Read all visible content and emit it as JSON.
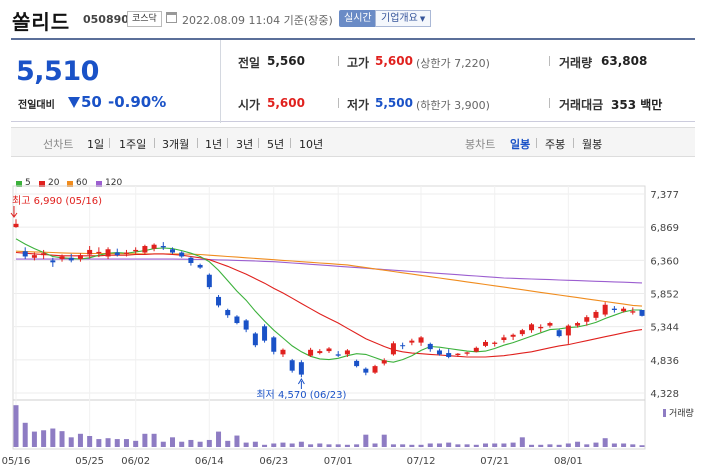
{
  "header": {
    "stock_name": "쏠리드",
    "stock_code": "050890",
    "market": "코스닥",
    "timestamp": "2022.08.09 11:04 기준(장중)",
    "realtime_label": "실시간",
    "overview_label": "기업개요"
  },
  "quote": {
    "price": "5,510",
    "change_label": "전일대비",
    "change": "50",
    "change_pct": "-0.90%",
    "prev_close_label": "전일",
    "prev_close": "5,560",
    "open_label": "시가",
    "open": "5,600",
    "high_label": "고가",
    "high": "5,600",
    "upper_limit": "(상한가 7,220)",
    "low_label": "저가",
    "low": "5,500",
    "lower_limit": "(하한가 3,900)",
    "volume_label": "거래량",
    "volume": "63,808",
    "amount_label": "거래대금",
    "amount": "353 백만"
  },
  "periods": {
    "line_chart_label": "선차트",
    "line_items": [
      "1일",
      "1주일",
      "3개월",
      "1년",
      "3년",
      "5년",
      "10년"
    ],
    "candle_chart_label": "봉차트",
    "candle_items": [
      "일봉",
      "주봉",
      "월봉"
    ],
    "active_candle": "일봉"
  },
  "colors": {
    "up": "#e0211e",
    "down": "#1a52c7",
    "ma5": "#3bb13b",
    "ma20": "#e0211e",
    "ma60": "#f08c1e",
    "ma120": "#9c5fd0",
    "volume": "#8e7cc3",
    "accent": "#5b6f99"
  },
  "chart_data": {
    "type": "candlestick",
    "legend": [
      "5",
      "20",
      "60",
      "120"
    ],
    "y_ticks": [
      "7,377",
      "6,869",
      "6,360",
      "5,852",
      "5,344",
      "4,836",
      "4,328"
    ],
    "ylim": [
      4328,
      7377
    ],
    "x_labels": [
      "05/16",
      "05/25",
      "06/02",
      "06/14",
      "06/23",
      "07/01",
      "07/12",
      "07/21",
      "08/01"
    ],
    "annotations": {
      "high": "최고 6,990 (05/16)",
      "low": "최저 4,570 (06/23)"
    },
    "volume_label": "거래량",
    "candles": [
      [
        6870,
        6990,
        6860,
        6920
      ],
      [
        6500,
        6560,
        6380,
        6420
      ],
      [
        6400,
        6480,
        6360,
        6440
      ],
      [
        6440,
        6520,
        6380,
        6470
      ],
      [
        6360,
        6400,
        6260,
        6330
      ],
      [
        6380,
        6450,
        6340,
        6420
      ],
      [
        6400,
        6460,
        6330,
        6360
      ],
      [
        6380,
        6470,
        6340,
        6440
      ],
      [
        6450,
        6580,
        6390,
        6520
      ],
      [
        6470,
        6560,
        6410,
        6490
      ],
      [
        6420,
        6560,
        6380,
        6530
      ],
      [
        6480,
        6540,
        6420,
        6440
      ],
      [
        6460,
        6520,
        6420,
        6480
      ],
      [
        6500,
        6560,
        6460,
        6520
      ],
      [
        6480,
        6600,
        6450,
        6580
      ],
      [
        6540,
        6620,
        6500,
        6600
      ],
      [
        6580,
        6640,
        6520,
        6560
      ],
      [
        6530,
        6560,
        6460,
        6480
      ],
      [
        6480,
        6500,
        6400,
        6420
      ],
      [
        6400,
        6420,
        6280,
        6320
      ],
      [
        6290,
        6310,
        6230,
        6250
      ],
      [
        6140,
        6160,
        5920,
        5950
      ],
      [
        5800,
        5830,
        5640,
        5670
      ],
      [
        5600,
        5620,
        5480,
        5520
      ],
      [
        5500,
        5520,
        5380,
        5400
      ],
      [
        5440,
        5460,
        5260,
        5300
      ],
      [
        5240,
        5260,
        5030,
        5060
      ],
      [
        5350,
        5380,
        5100,
        5130
      ],
      [
        5180,
        5200,
        4920,
        4960
      ],
      [
        4920,
        5010,
        4880,
        4990
      ],
      [
        4830,
        4850,
        4640,
        4670
      ],
      [
        4800,
        4830,
        4570,
        4610
      ],
      [
        4900,
        5020,
        4880,
        4990
      ],
      [
        4940,
        5000,
        4920,
        4970
      ],
      [
        4970,
        5030,
        4940,
        5010
      ],
      [
        4920,
        4970,
        4880,
        4900
      ],
      [
        4920,
        5000,
        4880,
        4980
      ],
      [
        4820,
        4840,
        4720,
        4740
      ],
      [
        4700,
        4720,
        4600,
        4640
      ],
      [
        4640,
        4760,
        4620,
        4740
      ],
      [
        4780,
        4860,
        4750,
        4830
      ],
      [
        4920,
        5120,
        4900,
        5090
      ],
      [
        5060,
        5100,
        5000,
        5050
      ],
      [
        5100,
        5160,
        5060,
        5130
      ],
      [
        5100,
        5200,
        5050,
        5180
      ],
      [
        5080,
        5100,
        4960,
        5000
      ],
      [
        4980,
        5010,
        4900,
        4920
      ],
      [
        4940,
        5000,
        4860,
        4880
      ],
      [
        4910,
        4940,
        4880,
        4930
      ],
      [
        4930,
        4960,
        4900,
        4950
      ],
      [
        4960,
        5040,
        4950,
        5020
      ],
      [
        5050,
        5140,
        5030,
        5110
      ],
      [
        5080,
        5120,
        5040,
        5100
      ],
      [
        5140,
        5220,
        5100,
        5180
      ],
      [
        5190,
        5240,
        5140,
        5220
      ],
      [
        5230,
        5310,
        5200,
        5290
      ],
      [
        5290,
        5400,
        5250,
        5380
      ],
      [
        5320,
        5380,
        5260,
        5340
      ],
      [
        5360,
        5420,
        5330,
        5400
      ],
      [
        5290,
        5310,
        5180,
        5200
      ],
      [
        5210,
        5380,
        5080,
        5360
      ],
      [
        5360,
        5420,
        5330,
        5400
      ],
      [
        5420,
        5520,
        5360,
        5490
      ],
      [
        5480,
        5600,
        5440,
        5570
      ],
      [
        5530,
        5720,
        5500,
        5680
      ],
      [
        5620,
        5660,
        5560,
        5600
      ],
      [
        5580,
        5650,
        5560,
        5620
      ],
      [
        5560,
        5640,
        5530,
        5580
      ],
      [
        5600,
        5600,
        5500,
        5510
      ]
    ],
    "ma5": [
      6690,
      6610,
      6540,
      6480,
      6420,
      6400,
      6390,
      6380,
      6400,
      6440,
      6470,
      6480,
      6470,
      6490,
      6510,
      6540,
      6550,
      6540,
      6510,
      6470,
      6420,
      6340,
      6210,
      6050,
      5890,
      5750,
      5580,
      5430,
      5290,
      5170,
      5050,
      4960,
      4890,
      4850,
      4840,
      4860,
      4900,
      4930,
      4920,
      4870,
      4820,
      4800,
      4840,
      4900,
      4980,
      5040,
      5030,
      5010,
      4990,
      4970,
      4960,
      4970,
      5010,
      5060,
      5100,
      5150,
      5200,
      5250,
      5300,
      5310,
      5330,
      5340,
      5370,
      5410,
      5470,
      5520,
      5570,
      5600,
      5600
    ],
    "ma20": [
      6480,
      6470,
      6460,
      6450,
      6440,
      6430,
      6430,
      6430,
      6430,
      6430,
      6440,
      6440,
      6440,
      6450,
      6450,
      6460,
      6460,
      6450,
      6440,
      6420,
      6400,
      6370,
      6320,
      6270,
      6210,
      6150,
      6080,
      6010,
      5930,
      5860,
      5780,
      5700,
      5620,
      5540,
      5470,
      5400,
      5320,
      5240,
      5160,
      5100,
      5040,
      4990,
      4960,
      4940,
      4930,
      4920,
      4910,
      4900,
      4890,
      4880,
      4880,
      4880,
      4890,
      4900,
      4920,
      4940,
      4960,
      4990,
      5020,
      5050,
      5070,
      5100,
      5130,
      5160,
      5190,
      5220,
      5250,
      5280,
      5300
    ],
    "ma60": [
      6500,
      6495,
      6490,
      6485,
      6480,
      6475,
      6470,
      6468,
      6466,
      6465,
      6464,
      6463,
      6462,
      6461,
      6460,
      6460,
      6460,
      6460,
      6458,
      6455,
      6450,
      6440,
      6430,
      6420,
      6410,
      6400,
      6390,
      6380,
      6370,
      6360,
      6350,
      6340,
      6330,
      6320,
      6310,
      6300,
      6290,
      6270,
      6250,
      6230,
      6210,
      6190,
      6170,
      6150,
      6130,
      6110,
      6090,
      6070,
      6050,
      6030,
      6010,
      5990,
      5970,
      5950,
      5930,
      5910,
      5890,
      5870,
      5850,
      5830,
      5810,
      5790,
      5770,
      5750,
      5730,
      5710,
      5690,
      5670,
      5660
    ],
    "ma120": [
      6380,
      6380,
      6380,
      6380,
      6380,
      6380,
      6380,
      6380,
      6380,
      6380,
      6380,
      6380,
      6380,
      6380,
      6380,
      6380,
      6380,
      6380,
      6378,
      6376,
      6374,
      6372,
      6368,
      6364,
      6360,
      6355,
      6350,
      6345,
      6340,
      6330,
      6320,
      6310,
      6300,
      6290,
      6280,
      6270,
      6260,
      6250,
      6240,
      6230,
      6220,
      6210,
      6200,
      6190,
      6180,
      6170,
      6160,
      6150,
      6140,
      6130,
      6120,
      6110,
      6100,
      6090,
      6085,
      6080,
      6075,
      6070,
      6065,
      6060,
      6055,
      6050,
      6045,
      6040,
      6035,
      6030,
      6025,
      6020,
      6015
    ],
    "volume": [
      0.95,
      0.55,
      0.35,
      0.38,
      0.42,
      0.36,
      0.22,
      0.3,
      0.25,
      0.18,
      0.2,
      0.18,
      0.18,
      0.14,
      0.3,
      0.3,
      0.12,
      0.22,
      0.12,
      0.16,
      0.12,
      0.16,
      0.35,
      0.14,
      0.26,
      0.1,
      0.12,
      0.05,
      0.08,
      0.1,
      0.08,
      0.12,
      0.06,
      0.08,
      0.06,
      0.06,
      0.05,
      0.06,
      0.28,
      0.08,
      0.28,
      0.06,
      0.06,
      0.05,
      0.05,
      0.08,
      0.08,
      0.1,
      0.06,
      0.06,
      0.05,
      0.08,
      0.08,
      0.08,
      0.1,
      0.22,
      0.05,
      0.05,
      0.06,
      0.05,
      0.08,
      0.12,
      0.06,
      0.1,
      0.2,
      0.08,
      0.08,
      0.06,
      0.04
    ]
  }
}
